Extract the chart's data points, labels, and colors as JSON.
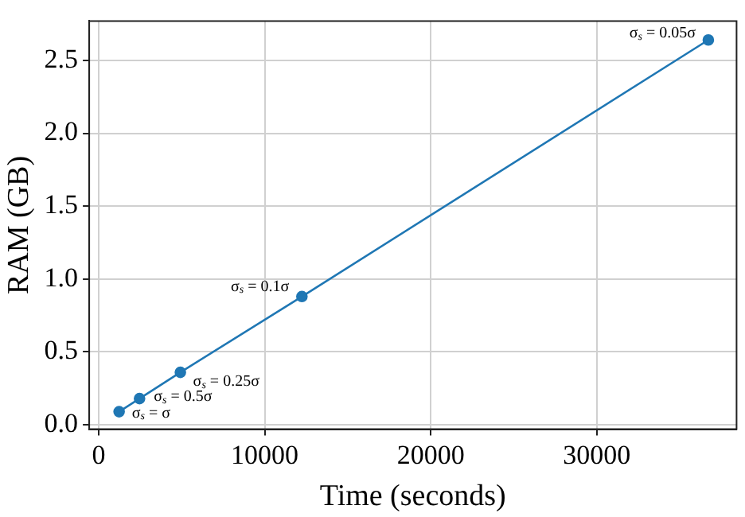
{
  "chart_data": {
    "type": "line",
    "xlabel": "Time (seconds)",
    "ylabel": "RAM (GB)",
    "x": [
      1230,
      2460,
      4920,
      12240,
      36720
    ],
    "series": [
      {
        "color": "#1f77b4",
        "values": [
          0.09,
          0.18,
          0.36,
          0.88,
          2.64
        ]
      }
    ],
    "xlim": [
      -570,
      38420
    ],
    "xticks": [
      0,
      10000,
      20000,
      30000
    ],
    "ylim": [
      -0.03,
      2.77
    ],
    "yticks": [
      {
        "value": 0,
        "label": "0.0"
      },
      {
        "value": 0.5,
        "label": "0.5"
      },
      {
        "value": 1,
        "label": "1.0"
      },
      {
        "value": 1.5,
        "label": "1.5"
      },
      {
        "value": 2,
        "label": "2.0"
      },
      {
        "value": 2.5,
        "label": "2.5"
      }
    ],
    "grid": true,
    "marker": "circle",
    "line_style": "solid",
    "annotations": [
      {
        "text": "σ$_{s}$ = σ",
        "x": 1230,
        "y": 0.09
      },
      {
        "text": "σ$_{s}$ = 0.5σ",
        "x": 2460,
        "y": 0.18
      },
      {
        "text": "σ$_{s}$ = 0.25σ",
        "x": 4920,
        "y": 0.36
      },
      {
        "text": "σ$_{s}$ = 0.1σ",
        "x": 12240,
        "y": 0.88
      },
      {
        "text": "σ$_{s}$ = 0.05σ",
        "x": 36720,
        "y": 2.64
      }
    ]
  }
}
